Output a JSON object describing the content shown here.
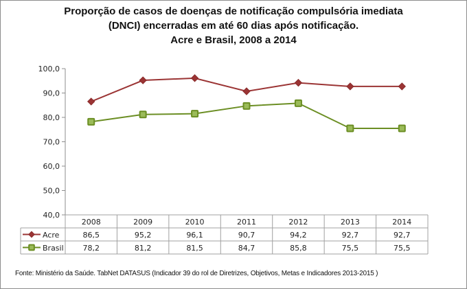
{
  "chart_data": {
    "type": "line",
    "title": [
      "Proporção de casos de doenças de notificação compulsória imediata",
      "(DNCI) encerradas em até 60 dias após notificação.",
      "Acre e Brasil, 2008 a 2014"
    ],
    "xlabel": "",
    "ylabel": "",
    "categories": [
      "2008",
      "2009",
      "2010",
      "2011",
      "2012",
      "2013",
      "2014"
    ],
    "ylim": [
      40,
      100
    ],
    "yticks": [
      40,
      50,
      60,
      70,
      80,
      90,
      100
    ],
    "ytick_labels": [
      "40,0",
      "50,0",
      "60,0",
      "70,0",
      "80,0",
      "90,0",
      "100,0"
    ],
    "grid": false,
    "legend": "data-table-left",
    "series": [
      {
        "name": "Acre",
        "marker": "diamond",
        "color": "#9b3434",
        "values": [
          86.5,
          95.2,
          96.1,
          90.7,
          94.2,
          92.7,
          92.7
        ],
        "labels": [
          "86,5",
          "95,2",
          "96,1",
          "90,7",
          "94,2",
          "92,7",
          "92,7"
        ]
      },
      {
        "name": "Brasil",
        "marker": "square",
        "color": "#6b8e23",
        "fill": "#9bbb59",
        "values": [
          78.2,
          81.2,
          81.5,
          84.7,
          85.8,
          75.5,
          75.5
        ],
        "labels": [
          "78,2",
          "81,2",
          "81,5",
          "84,7",
          "85,8",
          "75,5",
          "75,5"
        ]
      }
    ],
    "source": "Fonte: Ministério da Saúde. TabNet DATASUS (Indicador 39 do rol de Diretrizes, Objetivos, Metas e Indicadores 2013-2015 )"
  }
}
